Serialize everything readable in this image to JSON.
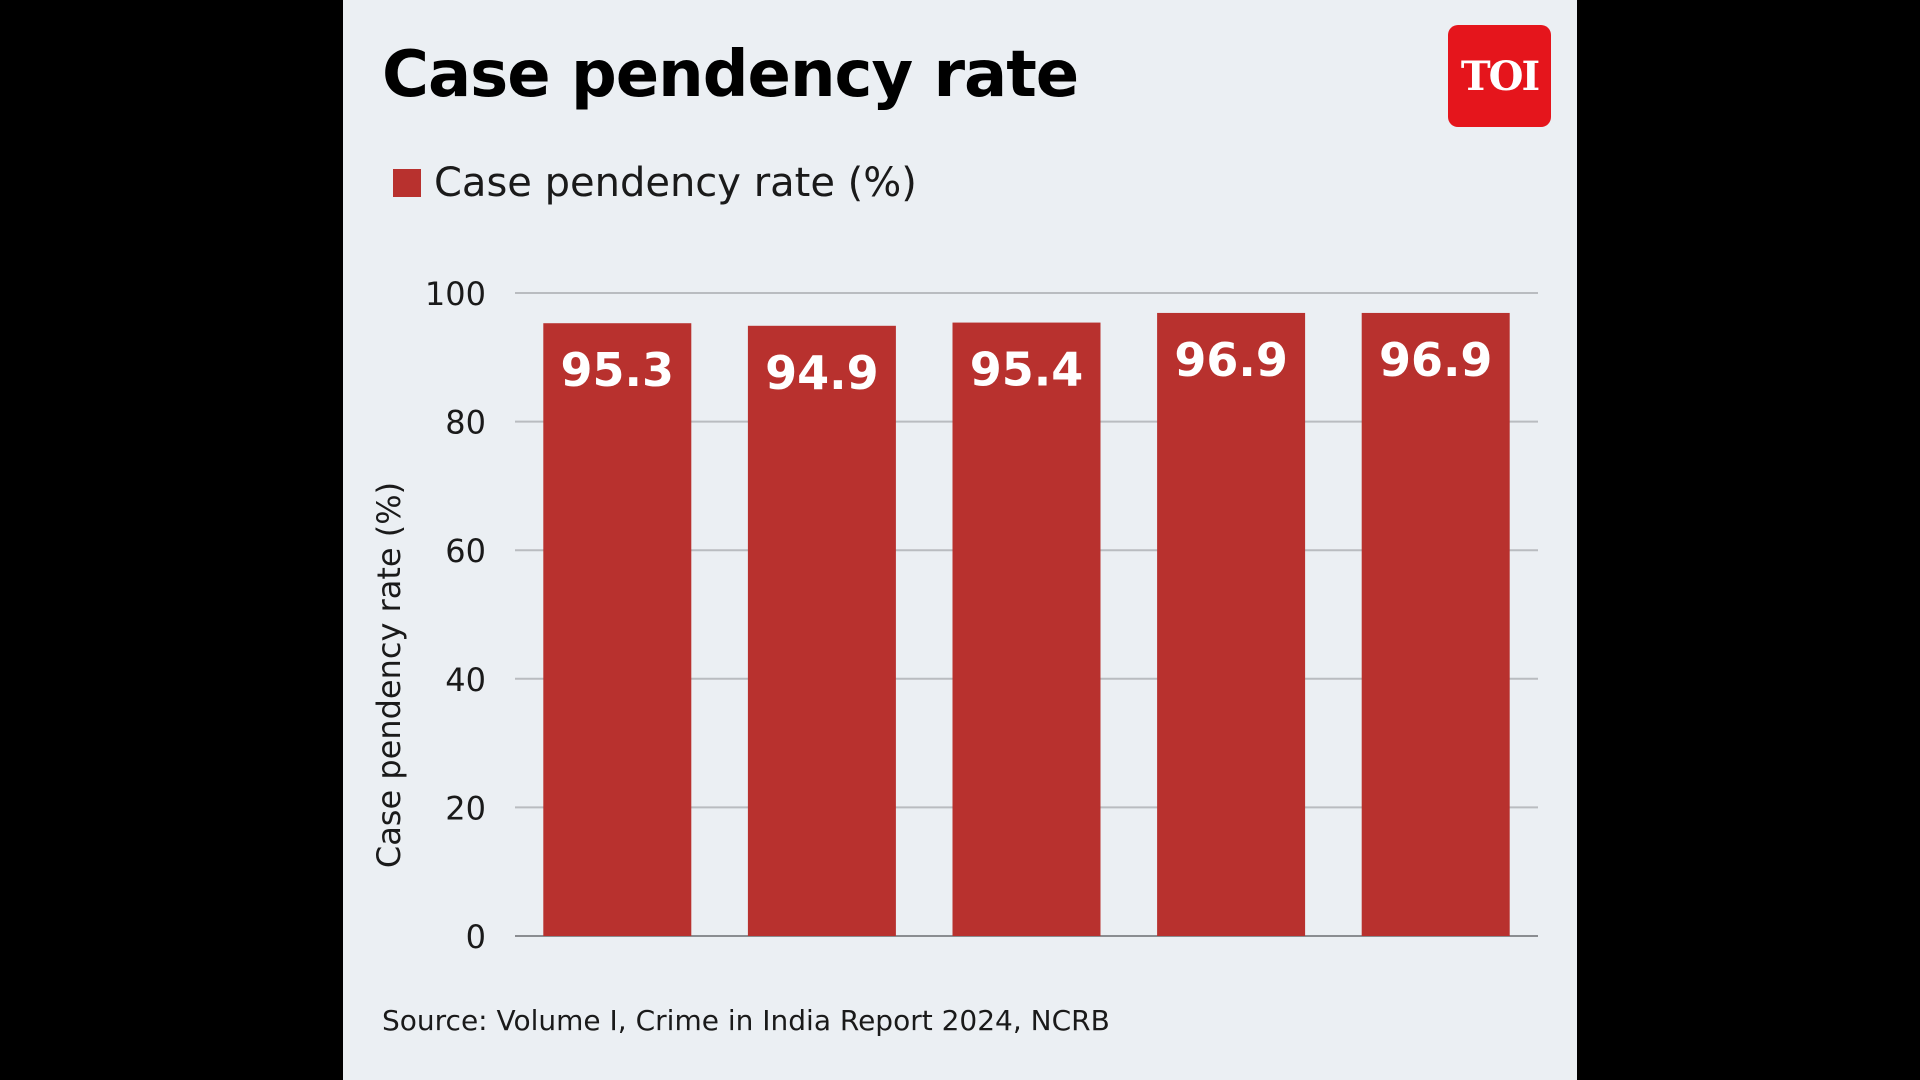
{
  "header": {
    "title": "Case pendency rate",
    "logo_text": "TOI"
  },
  "footer": {
    "source": "Source: Volume I, Crime in India Report 2024, NCRB"
  },
  "chart_data": {
    "type": "bar",
    "title": "Case pendency rate",
    "ylabel": "Case pendency rate (%)",
    "xlabel": "",
    "ylim": [
      0,
      100
    ],
    "yticks": [
      0,
      20,
      40,
      60,
      80,
      100
    ],
    "grid": true,
    "legend": "top-left",
    "series": [
      {
        "name": "Case pendency rate (%)",
        "color": "#b8312e",
        "values": [
          95.3,
          94.9,
          95.4,
          96.9,
          96.9
        ],
        "labels": [
          "95.3",
          "94.9",
          "95.4",
          "96.9",
          "96.9"
        ]
      }
    ]
  },
  "colors": {
    "panel_background": "#ebeff3",
    "bar": "#b8312e",
    "logo": "#e5151c",
    "gridline": "#b9bcc0"
  }
}
